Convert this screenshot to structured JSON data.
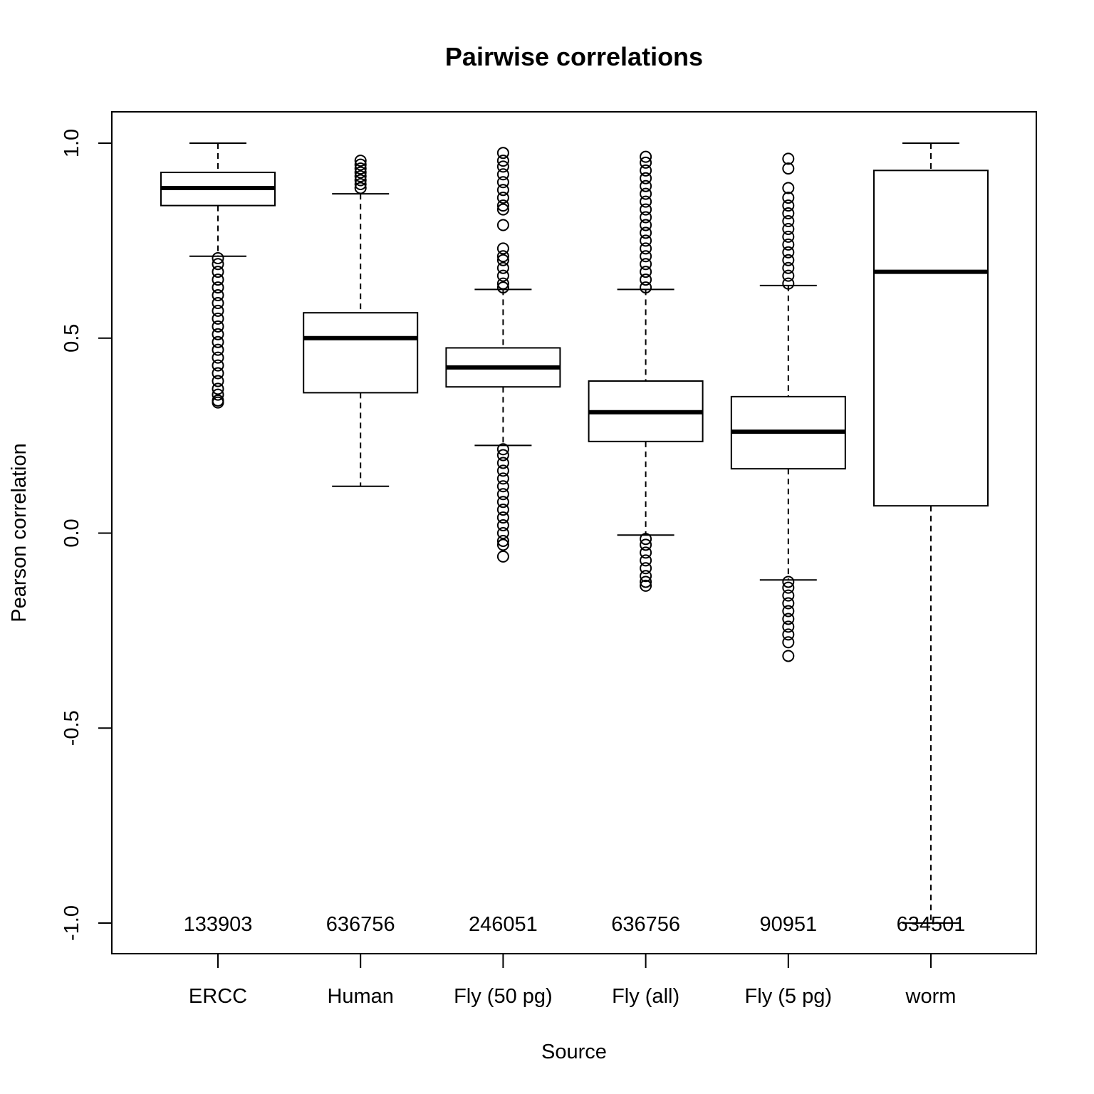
{
  "chart_data": {
    "type": "box",
    "title": "Pairwise correlations",
    "xlabel": "Source",
    "ylabel": "Pearson correlation",
    "ylim": [
      -1.0,
      1.0
    ],
    "yticks": [
      -1.0,
      -0.5,
      0.0,
      0.5,
      1.0
    ],
    "ytick_labels": [
      "-1.0",
      "-0.5",
      "0.0",
      "0.5",
      "1.0"
    ],
    "grid": false,
    "categories": [
      "ERCC",
      "Human",
      "Fly (50 pg)",
      "Fly (all)",
      "Fly (5 pg)",
      "worm"
    ],
    "counts": [
      "133903",
      "636756",
      "246051",
      "636756",
      "90951",
      "634501"
    ],
    "boxes": [
      {
        "category": "ERCC",
        "whisker_low": 0.71,
        "q1": 0.84,
        "median": 0.885,
        "q3": 0.925,
        "whisker_high": 1.0,
        "outliers_low": [
          0.335,
          0.34,
          0.355,
          0.37,
          0.39,
          0.41,
          0.43,
          0.45,
          0.47,
          0.49,
          0.51,
          0.53,
          0.55,
          0.57,
          0.59,
          0.61,
          0.63,
          0.65,
          0.67,
          0.69,
          0.705
        ],
        "outliers_high": []
      },
      {
        "category": "Human",
        "whisker_low": 0.12,
        "q1": 0.36,
        "median": 0.5,
        "q3": 0.565,
        "whisker_high": 0.87,
        "outliers_low": [],
        "outliers_high": [
          0.885,
          0.895,
          0.905,
          0.915,
          0.925,
          0.935,
          0.945,
          0.955
        ]
      },
      {
        "category": "Fly (50 pg)",
        "whisker_low": 0.225,
        "q1": 0.375,
        "median": 0.425,
        "q3": 0.475,
        "whisker_high": 0.625,
        "outliers_low": [
          -0.06,
          -0.03,
          -0.02,
          0.0,
          0.02,
          0.04,
          0.06,
          0.08,
          0.1,
          0.12,
          0.14,
          0.16,
          0.18,
          0.2,
          0.215
        ],
        "outliers_high": [
          0.63,
          0.64,
          0.66,
          0.68,
          0.7,
          0.71,
          0.73,
          0.79,
          0.83,
          0.84,
          0.86,
          0.88,
          0.9,
          0.92,
          0.94,
          0.955,
          0.975
        ]
      },
      {
        "category": "Fly (all)",
        "whisker_low": -0.005,
        "q1": 0.235,
        "median": 0.31,
        "q3": 0.39,
        "whisker_high": 0.625,
        "outliers_low": [
          -0.135,
          -0.125,
          -0.11,
          -0.09,
          -0.07,
          -0.05,
          -0.03,
          -0.015
        ],
        "outliers_high": [
          0.63,
          0.65,
          0.67,
          0.69,
          0.71,
          0.73,
          0.75,
          0.77,
          0.79,
          0.81,
          0.83,
          0.85,
          0.87,
          0.89,
          0.91,
          0.93,
          0.95,
          0.965
        ]
      },
      {
        "category": "Fly (5 pg)",
        "whisker_low": -0.12,
        "q1": 0.165,
        "median": 0.26,
        "q3": 0.35,
        "whisker_high": 0.635,
        "outliers_low": [
          -0.315,
          -0.28,
          -0.26,
          -0.24,
          -0.22,
          -0.2,
          -0.18,
          -0.16,
          -0.14,
          -0.125
        ],
        "outliers_high": [
          0.64,
          0.66,
          0.68,
          0.7,
          0.72,
          0.74,
          0.76,
          0.78,
          0.8,
          0.82,
          0.84,
          0.86,
          0.885,
          0.935,
          0.96
        ]
      },
      {
        "category": "worm",
        "whisker_low": -1.0,
        "q1": 0.07,
        "median": 0.67,
        "q3": 0.93,
        "whisker_high": 1.0,
        "outliers_low": [],
        "outliers_high": []
      }
    ]
  }
}
